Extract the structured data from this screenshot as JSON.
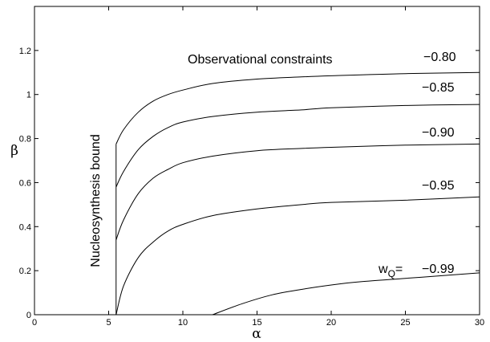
{
  "chart_data": {
    "type": "line",
    "xlabel": "α",
    "ylabel": "β",
    "xlim": [
      0,
      30
    ],
    "ylim": [
      0,
      1.4
    ],
    "xticks": [
      0,
      5,
      10,
      15,
      20,
      25,
      30
    ],
    "yticks": [
      0,
      0.2,
      0.4,
      0.6,
      0.8,
      1.0,
      1.2
    ],
    "ytick_labels": [
      "0",
      "0.2",
      "0.4",
      "0.6",
      "0.8",
      "1",
      "1.2"
    ],
    "grid": false,
    "bound": {
      "label": "Nucleosynthesis bound",
      "x": 5.5,
      "y_range": [
        0,
        0.775
      ]
    },
    "region_label": "Observational constraints",
    "wq_prefix": "w",
    "wq_subscript": "Q",
    "wq_suffix": "=",
    "series": [
      {
        "label": "−0.80",
        "x": [
          5.5,
          6,
          7,
          8,
          9,
          10,
          12,
          15,
          18,
          20,
          25,
          30
        ],
        "y": [
          0.775,
          0.84,
          0.92,
          0.97,
          1.0,
          1.02,
          1.05,
          1.07,
          1.08,
          1.085,
          1.095,
          1.1
        ]
      },
      {
        "label": "−0.85",
        "x": [
          5.5,
          6,
          7,
          8,
          9,
          10,
          12,
          15,
          18,
          20,
          25,
          30
        ],
        "y": [
          0.58,
          0.65,
          0.75,
          0.81,
          0.85,
          0.875,
          0.9,
          0.92,
          0.93,
          0.94,
          0.95,
          0.955
        ]
      },
      {
        "label": "−0.90",
        "x": [
          5.5,
          6,
          7,
          8,
          9,
          10,
          12,
          15,
          18,
          20,
          25,
          30
        ],
        "y": [
          0.34,
          0.43,
          0.55,
          0.62,
          0.66,
          0.69,
          0.72,
          0.745,
          0.755,
          0.76,
          0.77,
          0.775
        ]
      },
      {
        "label": "−0.95",
        "x": [
          5.5,
          6,
          7,
          8,
          9,
          10,
          12,
          15,
          18,
          20,
          25,
          30
        ],
        "y": [
          0.0,
          0.13,
          0.26,
          0.33,
          0.38,
          0.41,
          0.45,
          0.48,
          0.5,
          0.51,
          0.52,
          0.535
        ]
      },
      {
        "label": "−0.99",
        "x": [
          12,
          14,
          16,
          18,
          20,
          22,
          25,
          28,
          30
        ],
        "y": [
          0.0,
          0.05,
          0.09,
          0.115,
          0.135,
          0.15,
          0.165,
          0.18,
          0.19
        ]
      }
    ]
  }
}
